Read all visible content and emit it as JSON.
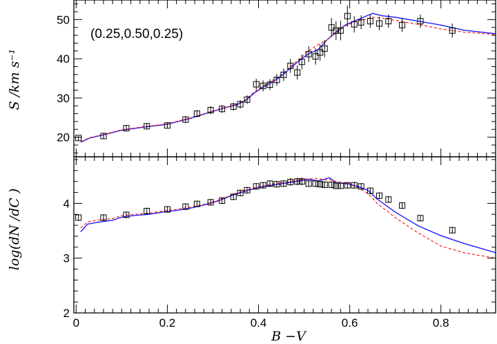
{
  "chart_data": {
    "type": "line",
    "annotation": "(0.25,0.50,0.25)",
    "xlabel": "B −V",
    "xlim": [
      -0.005,
      0.92
    ],
    "xticks": [
      0,
      0.2,
      0.4,
      0.6,
      0.8
    ],
    "xtick_labels": [
      "0",
      "0.2",
      "0.4",
      "0.6",
      "0.8"
    ],
    "panels": [
      {
        "id": "top",
        "ylabel": "S /km s⁻¹",
        "ylim": [
          15,
          55
        ],
        "yticks": [
          20,
          30,
          40,
          50
        ],
        "ytick_labels": [
          "20",
          "30",
          "40",
          "50"
        ],
        "points": {
          "x": [
            0.005,
            0.06,
            0.11,
            0.155,
            0.2,
            0.24,
            0.265,
            0.295,
            0.32,
            0.345,
            0.36,
            0.375,
            0.395,
            0.41,
            0.425,
            0.44,
            0.455,
            0.47,
            0.485,
            0.495,
            0.51,
            0.525,
            0.535,
            0.545,
            0.56,
            0.57,
            0.58,
            0.595,
            0.61,
            0.625,
            0.645,
            0.665,
            0.685,
            0.715,
            0.755,
            0.825
          ],
          "y": [
            19.8,
            20.3,
            22.3,
            22.8,
            23.0,
            24.5,
            26.0,
            26.9,
            27.2,
            27.8,
            28.4,
            29.6,
            33.5,
            33.1,
            33.4,
            34.6,
            35.9,
            38.2,
            36.5,
            39.2,
            41.2,
            40.6,
            41.6,
            42.6,
            48.0,
            47.2,
            47.2,
            50.9,
            48.8,
            49.3,
            49.6,
            49.0,
            49.6,
            48.6,
            49.6,
            47.2
          ],
          "err": [
            0.6,
            0.8,
            0.8,
            0.8,
            0.8,
            0.9,
            0.9,
            1.0,
            1.0,
            1.0,
            1.1,
            1.1,
            1.4,
            1.4,
            1.4,
            1.5,
            1.6,
            1.8,
            1.8,
            1.9,
            2.0,
            2.1,
            2.1,
            2.2,
            2.4,
            2.4,
            2.5,
            2.7,
            2.1,
            1.8,
            1.7,
            1.7,
            1.7,
            1.7,
            1.7,
            1.8
          ]
        },
        "series": [
          {
            "name": "",
            "color": "#1c1cff",
            "style": "solid",
            "x": [
              0.01,
              0.03,
              0.06,
              0.1,
              0.15,
              0.2,
              0.25,
              0.3,
              0.33,
              0.35,
              0.37,
              0.39,
              0.41,
              0.43,
              0.45,
              0.47,
              0.49,
              0.51,
              0.53,
              0.55,
              0.57,
              0.59,
              0.61,
              0.63,
              0.65,
              0.67,
              0.7,
              0.75,
              0.8,
              0.85,
              0.92
            ],
            "y": [
              18.7,
              19.8,
              20.6,
              21.8,
              22.6,
              23.3,
              24.8,
              26.6,
              27.6,
              28.2,
              29.2,
              31.2,
              32.8,
              34.0,
              35.6,
              37.6,
              39.6,
              41.3,
              42.3,
              44.8,
              46.8,
              48.6,
              49.6,
              50.6,
              51.6,
              51.0,
              50.6,
              49.6,
              48.6,
              47.3,
              46.4
            ]
          },
          {
            "name": "",
            "color": "#ff1c1c",
            "style": "dashed",
            "x": [
              0.01,
              0.03,
              0.06,
              0.1,
              0.15,
              0.2,
              0.25,
              0.3,
              0.33,
              0.35,
              0.37,
              0.39,
              0.41,
              0.43,
              0.45,
              0.47,
              0.49,
              0.51,
              0.53,
              0.55,
              0.57,
              0.59,
              0.61,
              0.63,
              0.65,
              0.67,
              0.7,
              0.75,
              0.8,
              0.85,
              0.92
            ],
            "y": [
              18.9,
              19.9,
              20.7,
              21.9,
              22.7,
              23.4,
              24.9,
              26.7,
              27.7,
              28.3,
              29.4,
              31.5,
              33.1,
              34.4,
              36.0,
              38.0,
              40.0,
              42.0,
              43.6,
              44.8,
              46.6,
              48.4,
              49.4,
              50.0,
              50.6,
              50.4,
              49.8,
              48.8,
              47.6,
              46.8,
              46.2
            ]
          }
        ]
      },
      {
        "id": "bottom",
        "ylabel": "log(dN /dC )",
        "ylim": [
          2,
          4.85
        ],
        "yticks": [
          2,
          3,
          4
        ],
        "ytick_labels": [
          "2",
          "3",
          "4"
        ],
        "points": {
          "x": [
            0.005,
            0.06,
            0.11,
            0.155,
            0.2,
            0.24,
            0.265,
            0.295,
            0.32,
            0.345,
            0.36,
            0.375,
            0.395,
            0.41,
            0.425,
            0.44,
            0.455,
            0.47,
            0.485,
            0.495,
            0.51,
            0.525,
            0.535,
            0.545,
            0.56,
            0.57,
            0.58,
            0.595,
            0.61,
            0.625,
            0.645,
            0.665,
            0.685,
            0.715,
            0.755,
            0.825
          ],
          "y": [
            3.74,
            3.74,
            3.79,
            3.86,
            3.89,
            3.94,
            3.99,
            4.02,
            4.05,
            4.12,
            4.19,
            4.24,
            4.31,
            4.33,
            4.36,
            4.35,
            4.36,
            4.39,
            4.4,
            4.4,
            4.36,
            4.36,
            4.35,
            4.34,
            4.34,
            4.32,
            4.32,
            4.33,
            4.33,
            4.31,
            4.23,
            4.14,
            4.07,
            3.96,
            3.73,
            3.51
          ],
          "err": [
            0.06,
            0.06,
            0.06,
            0.06,
            0.06,
            0.06,
            0.06,
            0.06,
            0.06,
            0.06,
            0.06,
            0.06,
            0.06,
            0.06,
            0.06,
            0.06,
            0.06,
            0.07,
            0.07,
            0.07,
            0.06,
            0.06,
            0.06,
            0.06,
            0.06,
            0.06,
            0.06,
            0.06,
            0.06,
            0.06,
            0.06,
            0.06,
            0.06,
            0.06,
            0.06,
            0.06
          ]
        },
        "series": [
          {
            "name": "",
            "color": "#1c1cff",
            "style": "solid",
            "x": [
              0.01,
              0.025,
              0.05,
              0.08,
              0.1,
              0.13,
              0.16,
              0.19,
              0.22,
              0.25,
              0.28,
              0.31,
              0.34,
              0.37,
              0.4,
              0.43,
              0.46,
              0.49,
              0.51,
              0.53,
              0.545,
              0.555,
              0.57,
              0.6,
              0.62,
              0.64,
              0.66,
              0.7,
              0.75,
              0.8,
              0.85,
              0.92
            ],
            "y": [
              3.48,
              3.62,
              3.66,
              3.69,
              3.75,
              3.78,
              3.8,
              3.84,
              3.87,
              3.91,
              3.97,
              4.04,
              4.14,
              4.22,
              4.29,
              4.33,
              4.37,
              4.41,
              4.44,
              4.41,
              4.44,
              4.47,
              4.38,
              4.35,
              4.3,
              4.24,
              4.08,
              3.84,
              3.59,
              3.41,
              3.27,
              3.1
            ]
          },
          {
            "name": "",
            "color": "#ff1c1c",
            "style": "dashed",
            "x": [
              0.01,
              0.025,
              0.05,
              0.08,
              0.1,
              0.13,
              0.16,
              0.19,
              0.22,
              0.25,
              0.28,
              0.31,
              0.34,
              0.37,
              0.4,
              0.43,
              0.46,
              0.49,
              0.51,
              0.53,
              0.545,
              0.555,
              0.57,
              0.6,
              0.62,
              0.64,
              0.66,
              0.7,
              0.75,
              0.8,
              0.85,
              0.92
            ],
            "y": [
              3.55,
              3.66,
              3.7,
              3.72,
              3.78,
              3.8,
              3.82,
              3.86,
              3.89,
              3.93,
              3.98,
              4.05,
              4.15,
              4.24,
              4.3,
              4.35,
              4.39,
              4.43,
              4.45,
              4.45,
              4.43,
              4.44,
              4.4,
              4.36,
              4.28,
              4.18,
              4.0,
              3.74,
              3.46,
              3.22,
              3.1,
              3.0
            ]
          }
        ]
      }
    ]
  }
}
